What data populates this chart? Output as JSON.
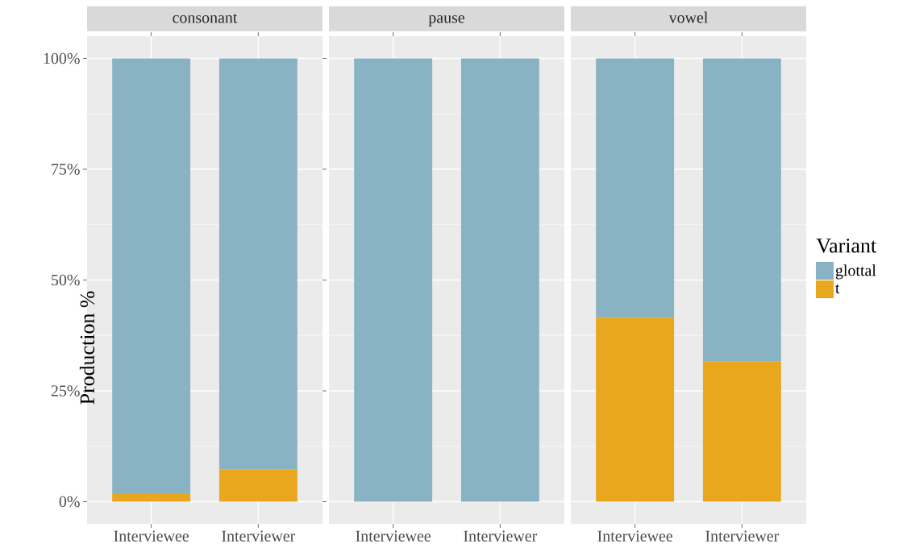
{
  "chart_data": [
    {
      "type": "bar",
      "stacked": true,
      "title": "consonant",
      "ylabel": "Production %",
      "categories": [
        "Interviewee",
        "Interviewer"
      ],
      "ylim": [
        -5,
        105
      ],
      "yticks": [
        {
          "value": 0,
          "label": "0%"
        },
        {
          "value": 25,
          "label": "25%"
        },
        {
          "value": 50,
          "label": "50%"
        },
        {
          "value": 75,
          "label": "75%"
        },
        {
          "value": 100,
          "label": "100%"
        }
      ],
      "grid": true,
      "series": [
        {
          "color": "#e8a71c",
          "values": [
            1.9,
            7.3
          ]
        },
        {
          "color": "#89b2c3",
          "values": [
            98.1,
            92.7
          ]
        }
      ]
    },
    {
      "type": "bar",
      "stacked": true,
      "title": "pause",
      "categories": [
        "Interviewee",
        "Interviewer"
      ],
      "ylim": [
        -5,
        105
      ],
      "yticks": [
        {
          "value": 0,
          "label": null
        },
        {
          "value": 25,
          "label": null
        },
        {
          "value": 50,
          "label": null
        },
        {
          "value": 75,
          "label": null
        },
        {
          "value": 100,
          "label": null
        }
      ],
      "grid": true,
      "tick_labels": "x",
      "series": [
        {
          "color": "#e8a71c",
          "values": [
            0,
            0
          ]
        },
        {
          "color": "#89b2c3",
          "values": [
            100,
            100
          ]
        }
      ]
    },
    {
      "type": "bar",
      "stacked": true,
      "title": "vowel",
      "categories": [
        "Interviewee",
        "Interviewer"
      ],
      "ylim": [
        -5,
        105
      ],
      "yticks": [
        {
          "value": 0,
          "label": null
        },
        {
          "value": 25,
          "label": null
        },
        {
          "value": 50,
          "label": null
        },
        {
          "value": 75,
          "label": null
        },
        {
          "value": 100,
          "label": null
        }
      ],
      "grid": true,
      "tick_labels": "x",
      "legend": "right",
      "legend_title": "Variant",
      "series": [
        {
          "name": "t",
          "color": "#e8a71c",
          "values": [
            41.5,
            31.7
          ]
        },
        {
          "name": "glottal",
          "color": "#89b2c3",
          "values": [
            58.5,
            68.3
          ]
        }
      ]
    }
  ]
}
